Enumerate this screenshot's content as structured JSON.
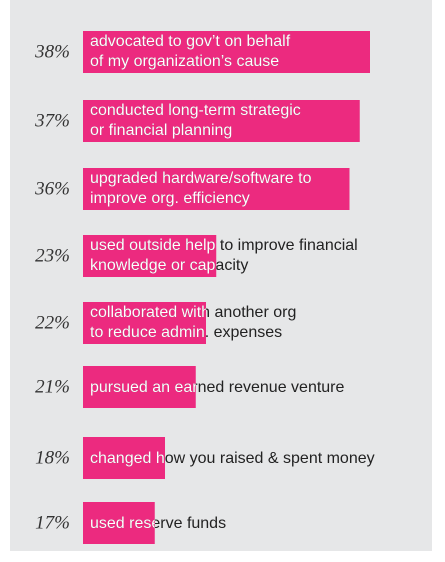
{
  "chart_data": {
    "type": "bar",
    "orientation": "horizontal",
    "categories": [
      [
        "advocated to gov’t on behalf",
        "of my organization’s cause"
      ],
      [
        "conducted long-term strategic",
        "or financial planning"
      ],
      [
        "upgraded hardware/software to",
        "improve org. efficiency"
      ],
      [
        "used outside help to improve financial",
        "knowledge or capacity"
      ],
      [
        "collaborated with another org",
        "to reduce admin. expenses"
      ],
      [
        "pursued an earned revenue venture"
      ],
      [
        "changed how you raised & spent money"
      ],
      [
        "used reserve funds"
      ]
    ],
    "values": [
      38,
      37,
      36,
      23,
      22,
      21,
      18,
      17
    ],
    "value_labels": [
      "38%",
      "37%",
      "36%",
      "23%",
      "22%",
      "21%",
      "18%",
      "17%"
    ],
    "color": "#ec2a7f",
    "xlim": [
      10,
      38
    ]
  }
}
